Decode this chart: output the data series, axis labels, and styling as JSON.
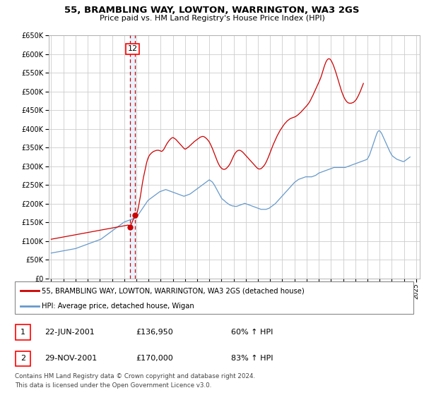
{
  "title": "55, BRAMBLING WAY, LOWTON, WARRINGTON, WA3 2GS",
  "subtitle": "Price paid vs. HM Land Registry's House Price Index (HPI)",
  "legend_line1": "55, BRAMBLING WAY, LOWTON, WARRINGTON, WA3 2GS (detached house)",
  "legend_line2": "HPI: Average price, detached house, Wigan",
  "table_row1": [
    "1",
    "22-JUN-2001",
    "£136,950",
    "60% ↑ HPI"
  ],
  "table_row2": [
    "2",
    "29-NOV-2001",
    "£170,000",
    "83% ↑ HPI"
  ],
  "footer": "Contains HM Land Registry data © Crown copyright and database right 2024.\nThis data is licensed under the Open Government Licence v3.0.",
  "annotation_label": "12",
  "vline_x1": 2001.47,
  "vline_x2": 2001.91,
  "dot1_x": 2001.47,
  "dot1_y": 136950,
  "dot2_x": 2001.91,
  "dot2_y": 170000,
  "ylim": [
    0,
    650000
  ],
  "xlim_start": 1994.8,
  "xlim_end": 2025.3,
  "yticks": [
    0,
    50000,
    100000,
    150000,
    200000,
    250000,
    300000,
    350000,
    400000,
    450000,
    500000,
    550000,
    600000,
    650000
  ],
  "xticks": [
    1995,
    1996,
    1997,
    1998,
    1999,
    2000,
    2001,
    2002,
    2003,
    2004,
    2005,
    2006,
    2007,
    2008,
    2009,
    2010,
    2011,
    2012,
    2013,
    2014,
    2015,
    2016,
    2017,
    2018,
    2019,
    2020,
    2021,
    2022,
    2023,
    2024,
    2025
  ],
  "red_color": "#cc0000",
  "blue_color": "#6699cc",
  "grid_color": "#cccccc",
  "shade_color": "#ddeeff",
  "background_color": "#ffffff",
  "plot_bg_color": "#ffffff",
  "hpi_data_years": [
    1995.0,
    1995.083,
    1995.167,
    1995.25,
    1995.333,
    1995.417,
    1995.5,
    1995.583,
    1995.667,
    1995.75,
    1995.833,
    1995.917,
    1996.0,
    1996.083,
    1996.167,
    1996.25,
    1996.333,
    1996.417,
    1996.5,
    1996.583,
    1996.667,
    1996.75,
    1996.833,
    1996.917,
    1997.0,
    1997.083,
    1997.167,
    1997.25,
    1997.333,
    1997.417,
    1997.5,
    1997.583,
    1997.667,
    1997.75,
    1997.833,
    1997.917,
    1998.0,
    1998.083,
    1998.167,
    1998.25,
    1998.333,
    1998.417,
    1998.5,
    1998.583,
    1998.667,
    1998.75,
    1998.833,
    1998.917,
    1999.0,
    1999.083,
    1999.167,
    1999.25,
    1999.333,
    1999.417,
    1999.5,
    1999.583,
    1999.667,
    1999.75,
    1999.833,
    1999.917,
    2000.0,
    2000.083,
    2000.167,
    2000.25,
    2000.333,
    2000.417,
    2000.5,
    2000.583,
    2000.667,
    2000.75,
    2000.833,
    2000.917,
    2001.0,
    2001.083,
    2001.167,
    2001.25,
    2001.333,
    2001.417,
    2001.5,
    2001.583,
    2001.667,
    2001.75,
    2001.833,
    2001.917,
    2002.0,
    2002.083,
    2002.167,
    2002.25,
    2002.333,
    2002.417,
    2002.5,
    2002.583,
    2002.667,
    2002.75,
    2002.833,
    2002.917,
    2003.0,
    2003.083,
    2003.167,
    2003.25,
    2003.333,
    2003.417,
    2003.5,
    2003.583,
    2003.667,
    2003.75,
    2003.833,
    2003.917,
    2004.0,
    2004.083,
    2004.167,
    2004.25,
    2004.333,
    2004.417,
    2004.5,
    2004.583,
    2004.667,
    2004.75,
    2004.833,
    2004.917,
    2005.0,
    2005.083,
    2005.167,
    2005.25,
    2005.333,
    2005.417,
    2005.5,
    2005.583,
    2005.667,
    2005.75,
    2005.833,
    2005.917,
    2006.0,
    2006.083,
    2006.167,
    2006.25,
    2006.333,
    2006.417,
    2006.5,
    2006.583,
    2006.667,
    2006.75,
    2006.833,
    2006.917,
    2007.0,
    2007.083,
    2007.167,
    2007.25,
    2007.333,
    2007.417,
    2007.5,
    2007.583,
    2007.667,
    2007.75,
    2007.833,
    2007.917,
    2008.0,
    2008.083,
    2008.167,
    2008.25,
    2008.333,
    2008.417,
    2008.5,
    2008.583,
    2008.667,
    2008.75,
    2008.833,
    2008.917,
    2009.0,
    2009.083,
    2009.167,
    2009.25,
    2009.333,
    2009.417,
    2009.5,
    2009.583,
    2009.667,
    2009.75,
    2009.833,
    2009.917,
    2010.0,
    2010.083,
    2010.167,
    2010.25,
    2010.333,
    2010.417,
    2010.5,
    2010.583,
    2010.667,
    2010.75,
    2010.833,
    2010.917,
    2011.0,
    2011.083,
    2011.167,
    2011.25,
    2011.333,
    2011.417,
    2011.5,
    2011.583,
    2011.667,
    2011.75,
    2011.833,
    2011.917,
    2012.0,
    2012.083,
    2012.167,
    2012.25,
    2012.333,
    2012.417,
    2012.5,
    2012.583,
    2012.667,
    2012.75,
    2012.833,
    2012.917,
    2013.0,
    2013.083,
    2013.167,
    2013.25,
    2013.333,
    2013.417,
    2013.5,
    2013.583,
    2013.667,
    2013.75,
    2013.833,
    2013.917,
    2014.0,
    2014.083,
    2014.167,
    2014.25,
    2014.333,
    2014.417,
    2014.5,
    2014.583,
    2014.667,
    2014.75,
    2014.833,
    2014.917,
    2015.0,
    2015.083,
    2015.167,
    2015.25,
    2015.333,
    2015.417,
    2015.5,
    2015.583,
    2015.667,
    2015.75,
    2015.833,
    2015.917,
    2016.0,
    2016.083,
    2016.167,
    2016.25,
    2016.333,
    2016.417,
    2016.5,
    2016.583,
    2016.667,
    2016.75,
    2016.833,
    2016.917,
    2017.0,
    2017.083,
    2017.167,
    2017.25,
    2017.333,
    2017.417,
    2017.5,
    2017.583,
    2017.667,
    2017.75,
    2017.833,
    2017.917,
    2018.0,
    2018.083,
    2018.167,
    2018.25,
    2018.333,
    2018.417,
    2018.5,
    2018.583,
    2018.667,
    2018.75,
    2018.833,
    2018.917,
    2019.0,
    2019.083,
    2019.167,
    2019.25,
    2019.333,
    2019.417,
    2019.5,
    2019.583,
    2019.667,
    2019.75,
    2019.833,
    2019.917,
    2020.0,
    2020.083,
    2020.167,
    2020.25,
    2020.333,
    2020.417,
    2020.5,
    2020.583,
    2020.667,
    2020.75,
    2020.833,
    2020.917,
    2021.0,
    2021.083,
    2021.167,
    2021.25,
    2021.333,
    2021.417,
    2021.5,
    2021.583,
    2021.667,
    2021.75,
    2021.833,
    2021.917,
    2022.0,
    2022.083,
    2022.167,
    2022.25,
    2022.333,
    2022.417,
    2022.5,
    2022.583,
    2022.667,
    2022.75,
    2022.833,
    2022.917,
    2023.0,
    2023.083,
    2023.167,
    2023.25,
    2023.333,
    2023.417,
    2023.5,
    2023.583,
    2023.667,
    2023.75,
    2023.833,
    2023.917,
    2024.0,
    2024.083,
    2024.167,
    2024.25,
    2024.333,
    2024.417,
    2024.5,
    2024.583,
    2024.667,
    2024.75,
    2024.833,
    2024.917,
    2025.0
  ],
  "hpi_data_values": [
    68000,
    68500,
    69000,
    69500,
    70000,
    70500,
    71000,
    71500,
    72000,
    72500,
    73000,
    73500,
    74000,
    74500,
    75000,
    75500,
    76000,
    76500,
    77000,
    77500,
    78000,
    78500,
    79000,
    79500,
    80000,
    81000,
    82000,
    83000,
    84000,
    85000,
    86000,
    87000,
    88000,
    89000,
    90000,
    91000,
    92000,
    93000,
    94000,
    95000,
    96000,
    97000,
    98000,
    99000,
    100000,
    101000,
    102000,
    103000,
    104000,
    105000,
    107000,
    109000,
    111000,
    113000,
    115000,
    117000,
    119000,
    121000,
    123000,
    125000,
    127000,
    129000,
    131000,
    133000,
    135000,
    137000,
    139000,
    141000,
    143000,
    145000,
    147000,
    149000,
    151000,
    152000,
    153000,
    154000,
    155000,
    156000,
    157000,
    158000,
    159000,
    160000,
    161000,
    162000,
    163000,
    167000,
    171000,
    175000,
    179000,
    183000,
    187000,
    191000,
    195000,
    199000,
    203000,
    207000,
    210000,
    212000,
    214000,
    216000,
    218000,
    220000,
    222000,
    224000,
    226000,
    228000,
    230000,
    232000,
    233000,
    234000,
    235000,
    236000,
    237000,
    238000,
    237000,
    236000,
    235000,
    234000,
    233000,
    232000,
    231000,
    230000,
    229000,
    228000,
    227000,
    226000,
    225000,
    224000,
    223000,
    222000,
    221000,
    220000,
    221000,
    222000,
    223000,
    224000,
    225000,
    226000,
    228000,
    230000,
    232000,
    234000,
    236000,
    238000,
    240000,
    242000,
    244000,
    246000,
    248000,
    250000,
    252000,
    254000,
    256000,
    258000,
    260000,
    262000,
    264000,
    262000,
    260000,
    258000,
    254000,
    250000,
    245000,
    240000,
    235000,
    230000,
    225000,
    220000,
    215000,
    212000,
    210000,
    208000,
    205000,
    203000,
    201000,
    199000,
    197000,
    196000,
    195000,
    194000,
    194000,
    193000,
    193000,
    193000,
    194000,
    195000,
    196000,
    197000,
    198000,
    199000,
    200000,
    201000,
    200000,
    199000,
    198000,
    197000,
    196000,
    195000,
    194000,
    193000,
    192000,
    191000,
    190000,
    189000,
    188000,
    187000,
    186000,
    185000,
    185000,
    185000,
    185000,
    185000,
    185000,
    186000,
    187000,
    188000,
    190000,
    192000,
    194000,
    196000,
    198000,
    200000,
    203000,
    206000,
    209000,
    212000,
    215000,
    218000,
    221000,
    224000,
    227000,
    230000,
    233000,
    236000,
    239000,
    242000,
    245000,
    248000,
    251000,
    254000,
    257000,
    259000,
    261000,
    263000,
    265000,
    266000,
    267000,
    268000,
    269000,
    270000,
    271000,
    272000,
    272000,
    272000,
    272000,
    272000,
    272000,
    272000,
    273000,
    274000,
    275000,
    276000,
    278000,
    280000,
    282000,
    283000,
    284000,
    285000,
    286000,
    287000,
    288000,
    289000,
    290000,
    291000,
    292000,
    293000,
    294000,
    295000,
    296000,
    297000,
    297000,
    297000,
    297000,
    297000,
    297000,
    297000,
    297000,
    297000,
    297000,
    297000,
    297000,
    298000,
    299000,
    300000,
    301000,
    302000,
    303000,
    304000,
    305000,
    306000,
    307000,
    308000,
    309000,
    310000,
    311000,
    312000,
    313000,
    314000,
    315000,
    316000,
    317000,
    318000,
    320000,
    325000,
    330000,
    338000,
    346000,
    354000,
    362000,
    370000,
    378000,
    386000,
    392000,
    395000,
    395000,
    392000,
    388000,
    382000,
    376000,
    370000,
    364000,
    358000,
    352000,
    346000,
    340000,
    335000,
    330000,
    327000,
    325000,
    323000,
    321000,
    319000,
    318000,
    317000,
    316000,
    315000,
    314000,
    313000,
    313000,
    315000,
    317000,
    319000,
    321000,
    323000,
    325000,
    0
  ],
  "price_data_years": [
    1995.0,
    1995.083,
    1995.167,
    1995.25,
    1995.333,
    1995.417,
    1995.5,
    1995.583,
    1995.667,
    1995.75,
    1995.833,
    1995.917,
    1996.0,
    1996.083,
    1996.167,
    1996.25,
    1996.333,
    1996.417,
    1996.5,
    1996.583,
    1996.667,
    1996.75,
    1996.833,
    1996.917,
    1997.0,
    1997.083,
    1997.167,
    1997.25,
    1997.333,
    1997.417,
    1997.5,
    1997.583,
    1997.667,
    1997.75,
    1997.833,
    1997.917,
    1998.0,
    1998.083,
    1998.167,
    1998.25,
    1998.333,
    1998.417,
    1998.5,
    1998.583,
    1998.667,
    1998.75,
    1998.833,
    1998.917,
    1999.0,
    1999.083,
    1999.167,
    1999.25,
    1999.333,
    1999.417,
    1999.5,
    1999.583,
    1999.667,
    1999.75,
    1999.833,
    1999.917,
    2000.0,
    2000.083,
    2000.167,
    2000.25,
    2000.333,
    2000.417,
    2000.5,
    2000.583,
    2000.667,
    2000.75,
    2000.833,
    2000.917,
    2001.0,
    2001.083,
    2001.167,
    2001.25,
    2001.333,
    2001.47,
    2001.91,
    2002.0,
    2002.083,
    2002.167,
    2002.25,
    2002.333,
    2002.417,
    2002.5,
    2002.583,
    2002.667,
    2002.75,
    2002.833,
    2002.917,
    2003.0,
    2003.083,
    2003.167,
    2003.25,
    2003.333,
    2003.417,
    2003.5,
    2003.583,
    2003.667,
    2003.75,
    2003.833,
    2003.917,
    2004.0,
    2004.083,
    2004.167,
    2004.25,
    2004.333,
    2004.417,
    2004.5,
    2004.583,
    2004.667,
    2004.75,
    2004.833,
    2004.917,
    2005.0,
    2005.083,
    2005.167,
    2005.25,
    2005.333,
    2005.417,
    2005.5,
    2005.583,
    2005.667,
    2005.75,
    2005.833,
    2005.917,
    2006.0,
    2006.083,
    2006.167,
    2006.25,
    2006.333,
    2006.417,
    2006.5,
    2006.583,
    2006.667,
    2006.75,
    2006.833,
    2006.917,
    2007.0,
    2007.083,
    2007.167,
    2007.25,
    2007.333,
    2007.417,
    2007.5,
    2007.583,
    2007.667,
    2007.75,
    2007.833,
    2007.917,
    2008.0,
    2008.083,
    2008.167,
    2008.25,
    2008.333,
    2008.417,
    2008.5,
    2008.583,
    2008.667,
    2008.75,
    2008.833,
    2008.917,
    2009.0,
    2009.083,
    2009.167,
    2009.25,
    2009.333,
    2009.417,
    2009.5,
    2009.583,
    2009.667,
    2009.75,
    2009.833,
    2009.917,
    2010.0,
    2010.083,
    2010.167,
    2010.25,
    2010.333,
    2010.417,
    2010.5,
    2010.583,
    2010.667,
    2010.75,
    2010.833,
    2010.917,
    2011.0,
    2011.083,
    2011.167,
    2011.25,
    2011.333,
    2011.417,
    2011.5,
    2011.583,
    2011.667,
    2011.75,
    2011.833,
    2011.917,
    2012.0,
    2012.083,
    2012.167,
    2012.25,
    2012.333,
    2012.417,
    2012.5,
    2012.583,
    2012.667,
    2012.75,
    2012.833,
    2012.917,
    2013.0,
    2013.083,
    2013.167,
    2013.25,
    2013.333,
    2013.417,
    2013.5,
    2013.583,
    2013.667,
    2013.75,
    2013.833,
    2013.917,
    2014.0,
    2014.083,
    2014.167,
    2014.25,
    2014.333,
    2014.417,
    2014.5,
    2014.583,
    2014.667,
    2014.75,
    2014.833,
    2014.917,
    2015.0,
    2015.083,
    2015.167,
    2015.25,
    2015.333,
    2015.417,
    2015.5,
    2015.583,
    2015.667,
    2015.75,
    2015.833,
    2015.917,
    2016.0,
    2016.083,
    2016.167,
    2016.25,
    2016.333,
    2016.417,
    2016.5,
    2016.583,
    2016.667,
    2016.75,
    2016.833,
    2016.917,
    2017.0,
    2017.083,
    2017.167,
    2017.25,
    2017.333,
    2017.417,
    2017.5,
    2017.583,
    2017.667,
    2017.75,
    2017.833,
    2017.917,
    2018.0,
    2018.083,
    2018.167,
    2018.25,
    2018.333,
    2018.417,
    2018.5,
    2018.583,
    2018.667,
    2018.75,
    2018.833,
    2018.917,
    2019.0,
    2019.083,
    2019.167,
    2019.25,
    2019.333,
    2019.417,
    2019.5,
    2019.583,
    2019.667,
    2019.75,
    2019.833,
    2019.917,
    2020.0,
    2020.083,
    2020.167,
    2020.25,
    2020.333,
    2020.417,
    2020.5,
    2020.583,
    2020.667,
    2020.75,
    2020.833,
    2020.917,
    2021.0,
    2021.083,
    2021.167,
    2021.25,
    2021.333,
    2021.417,
    2021.5,
    2021.583,
    2021.667,
    2021.75,
    2021.833,
    2021.917,
    2022.0,
    2022.083,
    2022.167,
    2022.25,
    2022.333,
    2022.417,
    2022.5,
    2022.583,
    2022.667,
    2022.75,
    2022.833,
    2022.917,
    2023.0,
    2023.083,
    2023.167,
    2023.25,
    2023.333,
    2023.417,
    2023.5,
    2023.583,
    2023.667,
    2023.75,
    2023.833,
    2023.917,
    2024.0,
    2024.083,
    2024.167,
    2024.25,
    2024.333,
    2024.417,
    2024.5,
    2024.583,
    2024.667,
    2024.75,
    2024.833,
    2024.917,
    2025.0
  ],
  "price_data_values": [
    105000,
    105500,
    106000,
    106500,
    107000,
    107500,
    108000,
    108500,
    109000,
    109500,
    110000,
    110500,
    111000,
    111500,
    112000,
    112500,
    113000,
    113500,
    114000,
    114500,
    115000,
    115500,
    116000,
    116500,
    117000,
    117500,
    118000,
    118500,
    119000,
    119500,
    120000,
    120500,
    121000,
    121500,
    122000,
    122500,
    123000,
    123500,
    124000,
    124500,
    125000,
    125500,
    126000,
    126500,
    127000,
    127500,
    128000,
    128500,
    129000,
    129500,
    130000,
    130500,
    131000,
    131500,
    132000,
    132500,
    133000,
    133500,
    134000,
    134500,
    135000,
    135500,
    136000,
    136500,
    137000,
    137500,
    138000,
    138500,
    139000,
    139500,
    140000,
    140500,
    141000,
    141500,
    142000,
    142500,
    143000,
    136950,
    170000,
    172000,
    178000,
    190000,
    205000,
    220000,
    238000,
    255000,
    270000,
    283000,
    296000,
    308000,
    318000,
    325000,
    330000,
    333000,
    336000,
    338000,
    340000,
    341000,
    342000,
    343000,
    343000,
    343000,
    342000,
    341000,
    340000,
    342000,
    345000,
    350000,
    355000,
    360000,
    364000,
    368000,
    371000,
    374000,
    376000,
    377000,
    376000,
    374000,
    372000,
    369000,
    366000,
    363000,
    360000,
    357000,
    354000,
    351000,
    348000,
    346000,
    347000,
    349000,
    351000,
    353000,
    356000,
    358000,
    361000,
    363000,
    366000,
    368000,
    370000,
    372000,
    374000,
    376000,
    378000,
    379000,
    380000,
    380000,
    379000,
    377000,
    375000,
    372000,
    369000,
    365000,
    360000,
    354000,
    348000,
    341000,
    334000,
    327000,
    320000,
    313000,
    307000,
    302000,
    298000,
    295000,
    293000,
    292000,
    292000,
    293000,
    295000,
    298000,
    301000,
    305000,
    310000,
    316000,
    322000,
    328000,
    333000,
    337000,
    340000,
    342000,
    343000,
    343000,
    342000,
    340000,
    338000,
    335000,
    332000,
    329000,
    326000,
    323000,
    320000,
    317000,
    314000,
    311000,
    308000,
    305000,
    302000,
    299000,
    296000,
    294000,
    293000,
    293000,
    294000,
    296000,
    299000,
    302000,
    306000,
    311000,
    317000,
    323000,
    330000,
    337000,
    344000,
    351000,
    358000,
    364000,
    370000,
    376000,
    382000,
    387000,
    392000,
    397000,
    401000,
    405000,
    409000,
    413000,
    416000,
    419000,
    422000,
    424000,
    426000,
    428000,
    429000,
    430000,
    431000,
    432000,
    433000,
    435000,
    437000,
    439000,
    442000,
    444000,
    447000,
    450000,
    453000,
    456000,
    459000,
    462000,
    465000,
    469000,
    473000,
    478000,
    484000,
    489000,
    495000,
    501000,
    507000,
    513000,
    519000,
    525000,
    531000,
    538000,
    546000,
    555000,
    564000,
    572000,
    579000,
    584000,
    587000,
    588000,
    587000,
    584000,
    579000,
    573000,
    566000,
    558000,
    550000,
    541000,
    532000,
    523000,
    514000,
    505000,
    497000,
    490000,
    484000,
    479000,
    475000,
    472000,
    470000,
    469000,
    469000,
    469000,
    470000,
    471000,
    473000,
    476000,
    479000,
    484000,
    489000,
    495000,
    501000,
    508000,
    515000,
    522000,
    0
  ]
}
